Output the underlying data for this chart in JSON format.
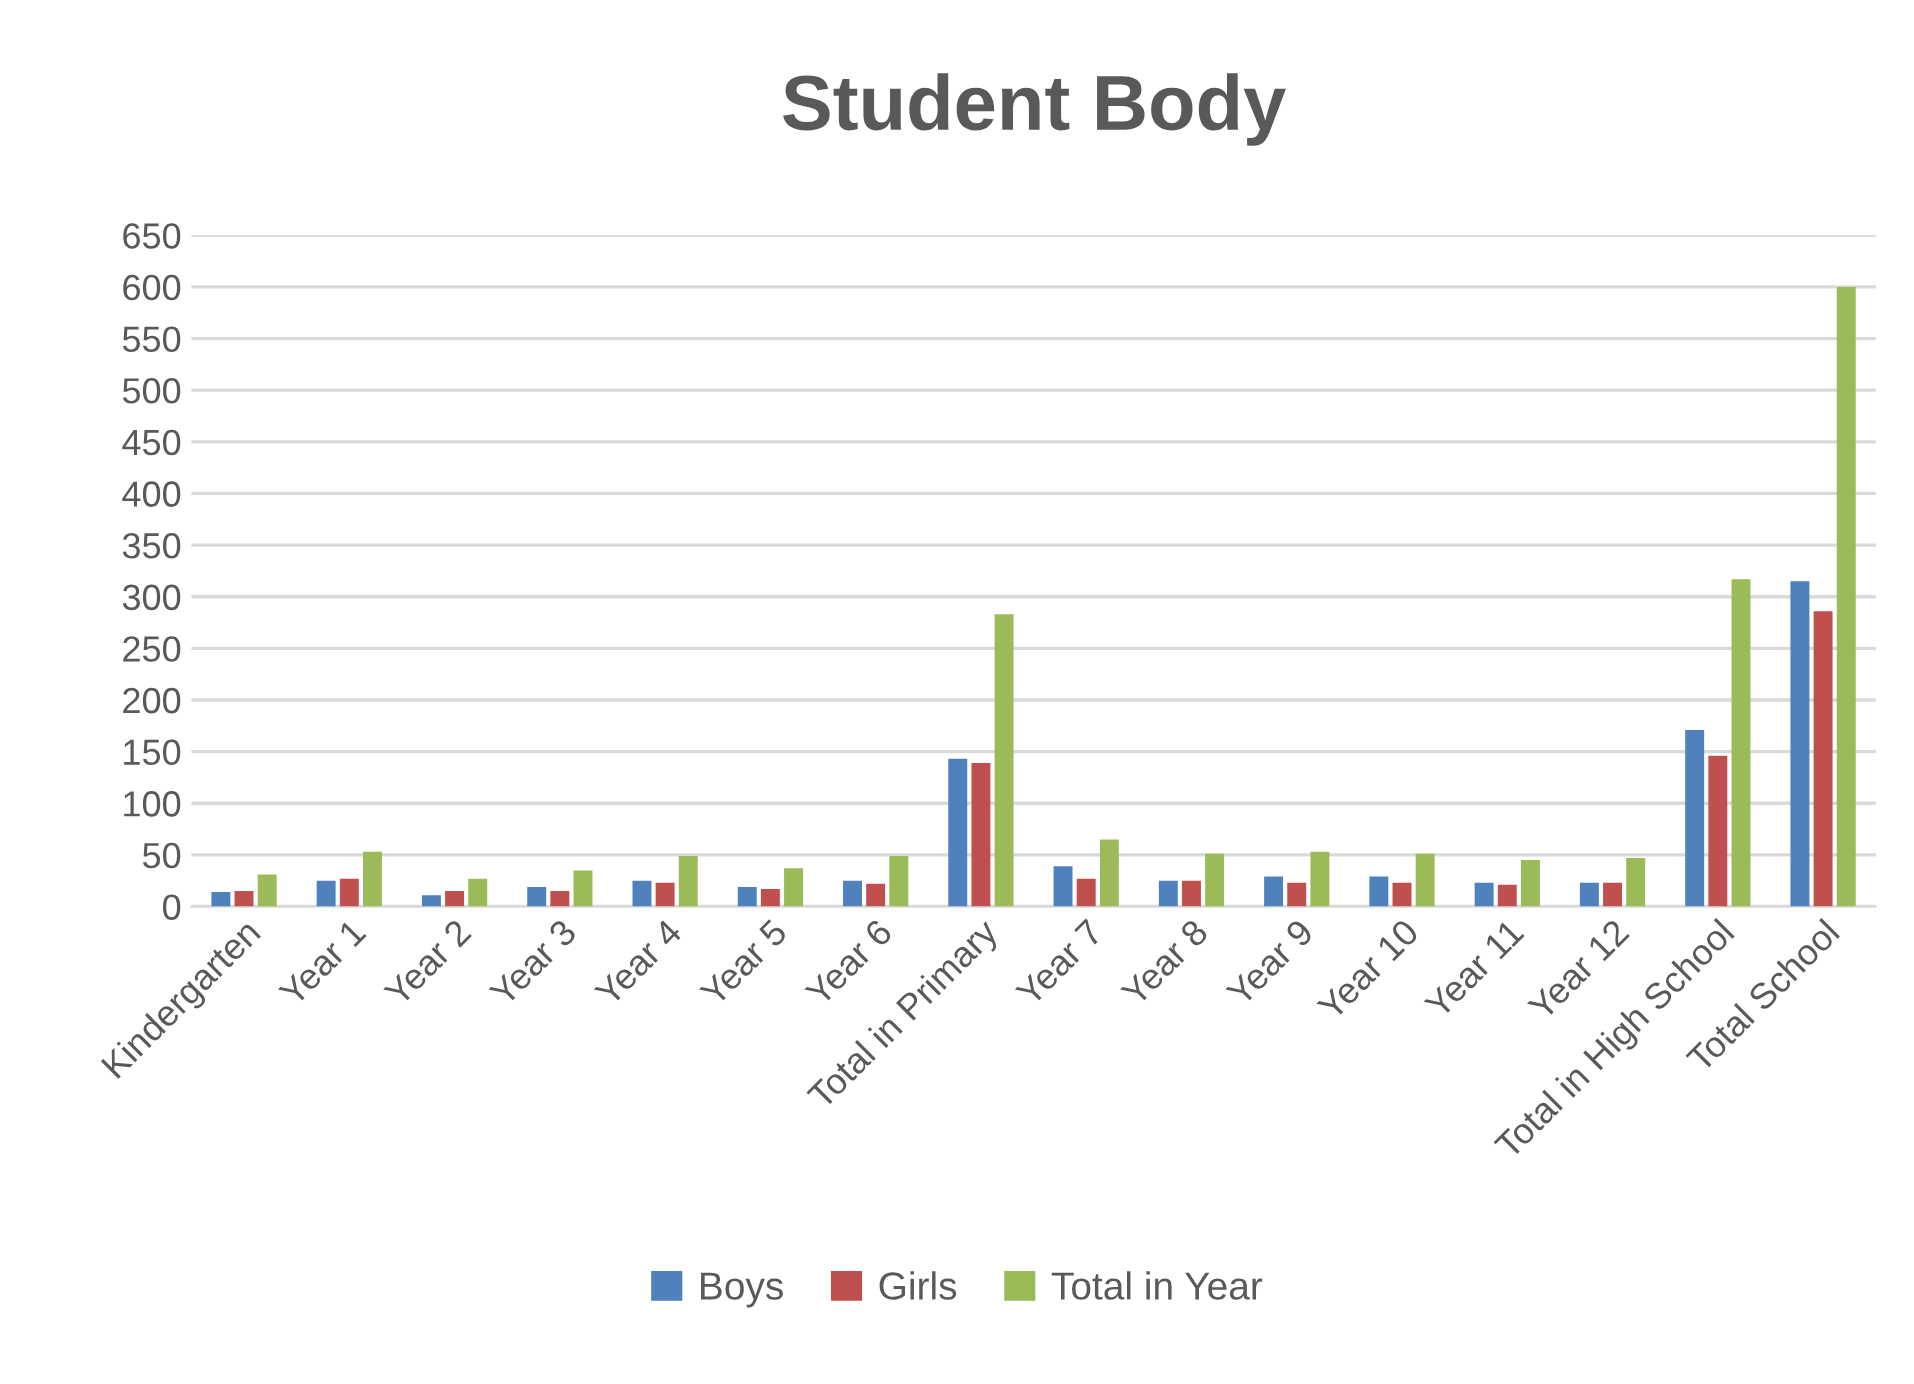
{
  "chart_data": {
    "type": "bar",
    "title": "Student Body",
    "categories": [
      "Kindergarten",
      "Year 1",
      "Year 2",
      "Year 3",
      "Year 4",
      "Year 5",
      "Year 6",
      "Total in Primary",
      "Year 7",
      "Year 8",
      "Year 9",
      "Year 10",
      "Year 11",
      "Year 12",
      "Total in High School",
      "Total School"
    ],
    "series": [
      {
        "name": "Boys",
        "color": "#4f81bd",
        "values": [
          14,
          25,
          11,
          19,
          25,
          19,
          25,
          143,
          39,
          25,
          29,
          29,
          23,
          23,
          171,
          315
        ]
      },
      {
        "name": "Girls",
        "color": "#c0504d",
        "values": [
          15,
          27,
          15,
          15,
          23,
          17,
          22,
          139,
          27,
          25,
          23,
          23,
          21,
          23,
          146,
          286
        ]
      },
      {
        "name": "Total in Year",
        "color": "#9bbb59",
        "values": [
          31,
          53,
          27,
          35,
          49,
          37,
          49,
          283,
          65,
          51,
          53,
          51,
          45,
          47,
          317,
          600
        ]
      }
    ],
    "ylim": [
      0,
      650
    ],
    "yticks": [
      0,
      50,
      100,
      150,
      200,
      250,
      300,
      350,
      400,
      450,
      500,
      550,
      600,
      650
    ],
    "grid": "y",
    "legend": "bottom"
  }
}
